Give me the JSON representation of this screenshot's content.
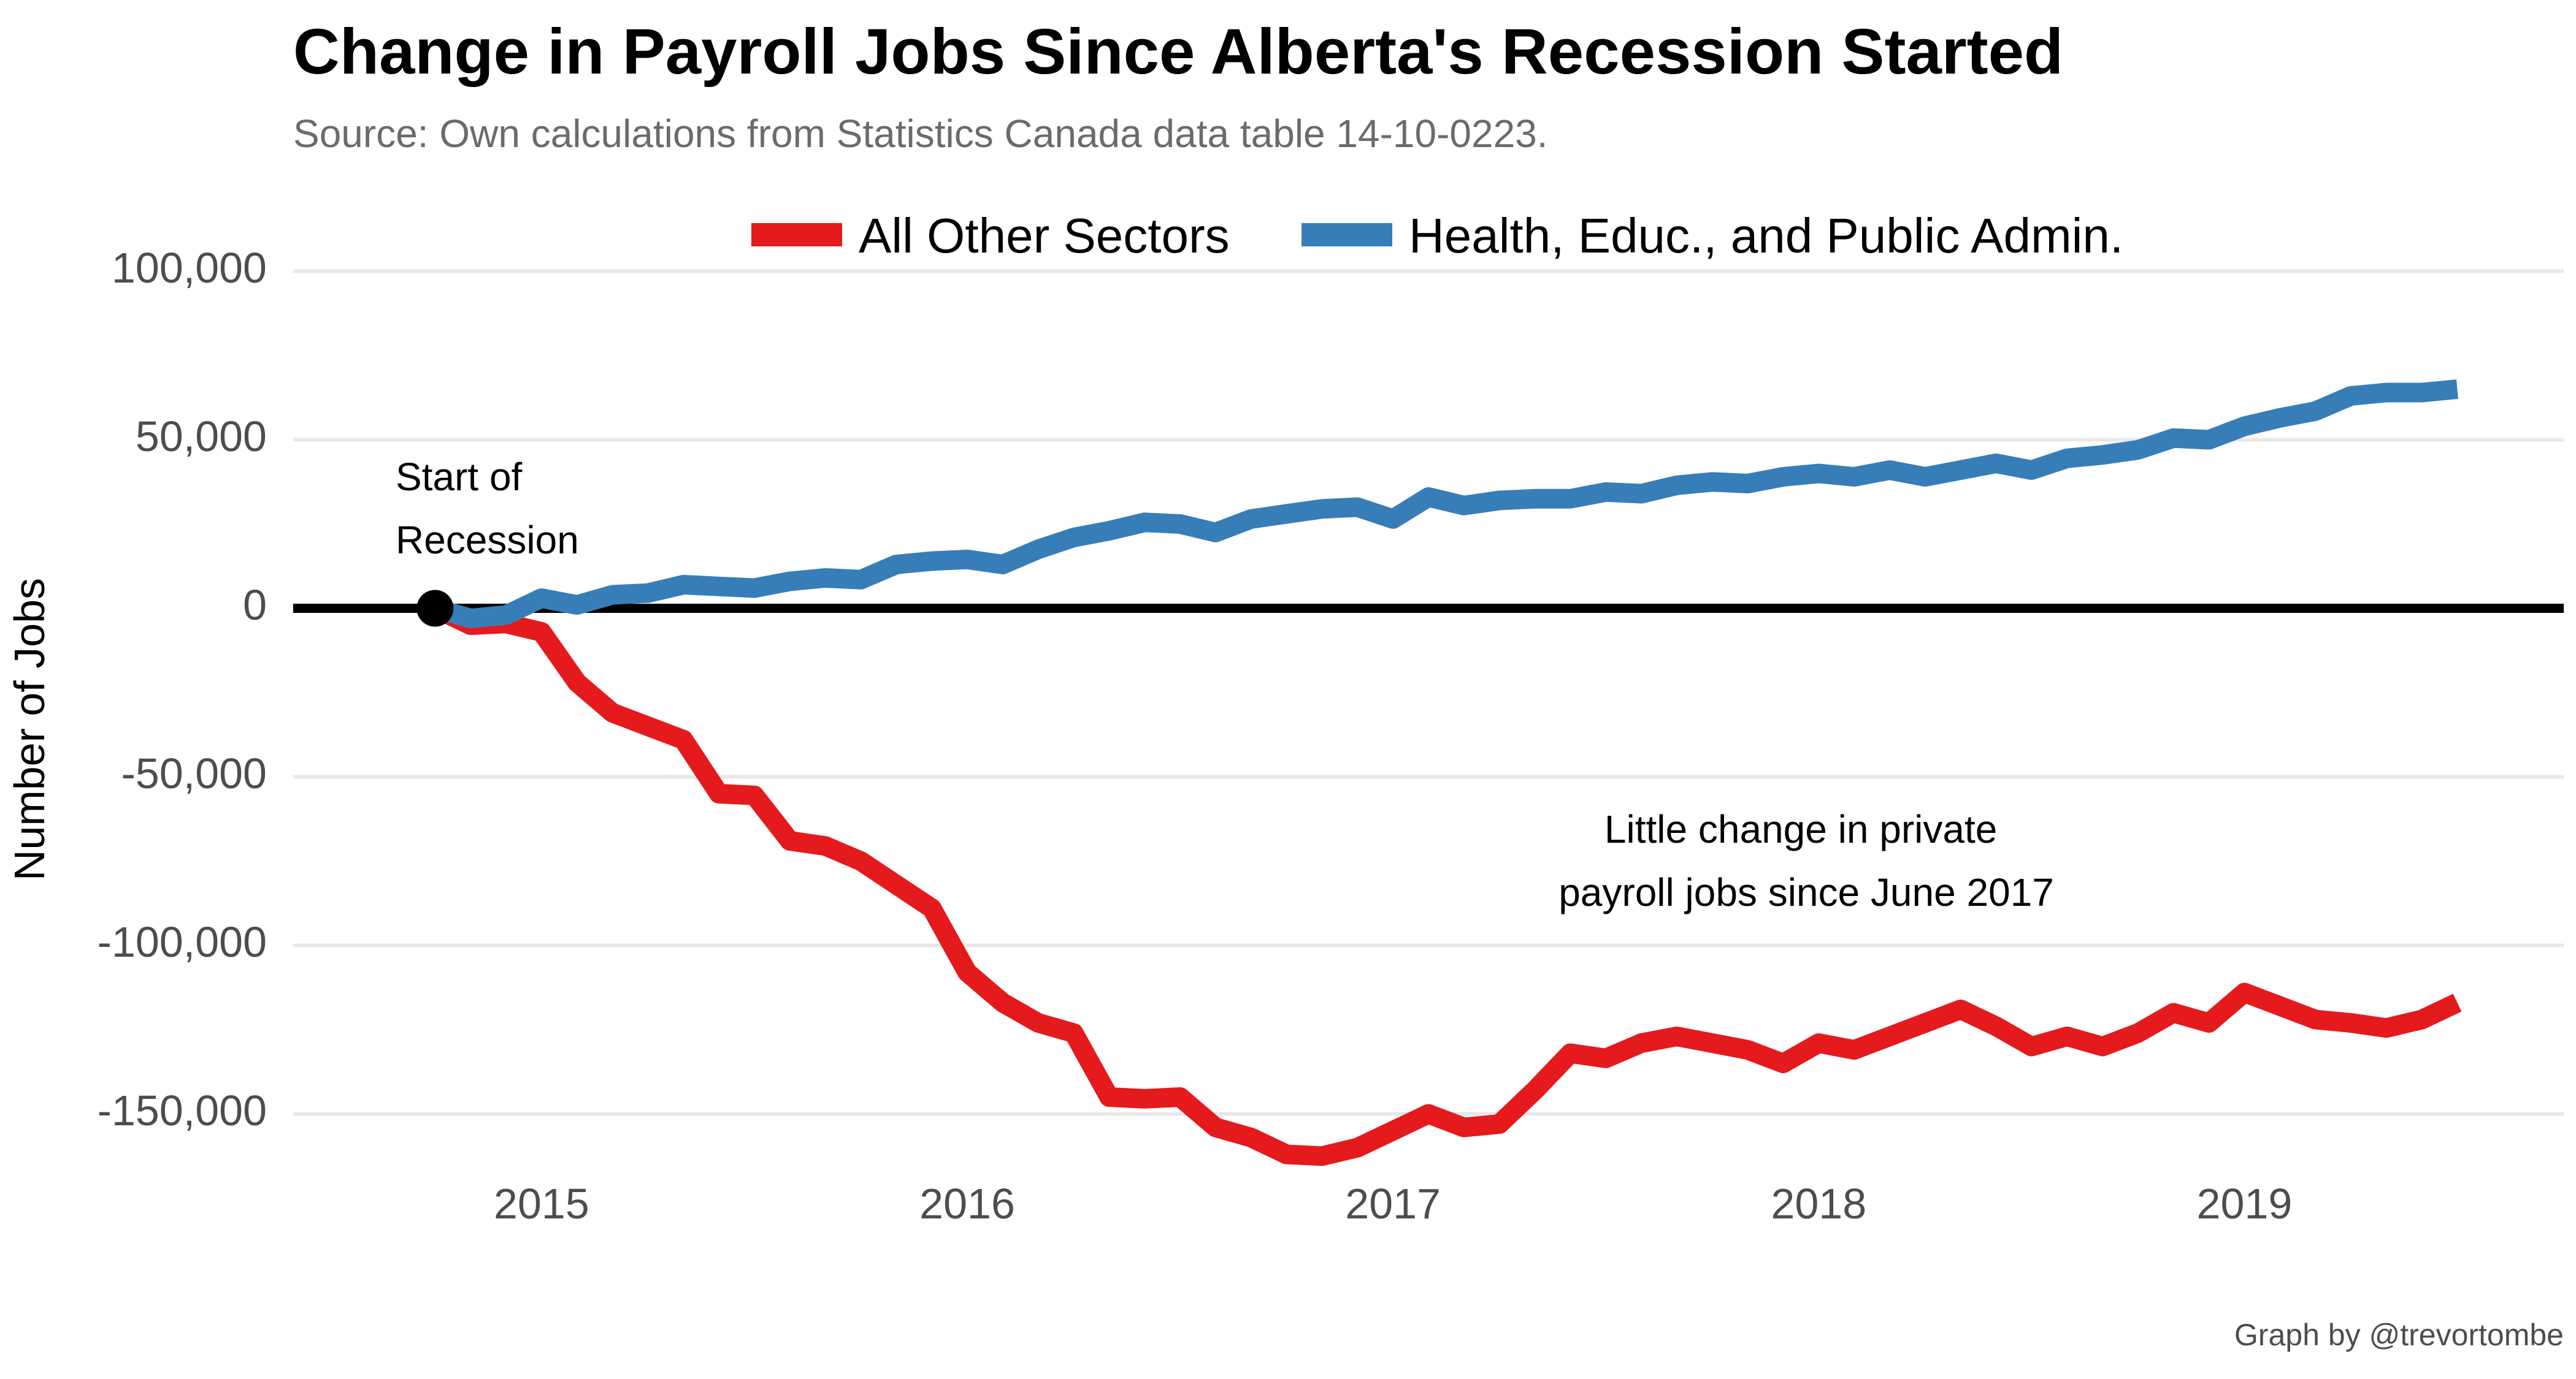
{
  "chart_data": {
    "type": "line",
    "title": "Change in Payroll Jobs Since Alberta's Recession Started",
    "subtitle": "Source: Own calculations from Statistics Canada data table 14-10-0223.",
    "ylabel": "Number of Jobs",
    "xlabel": "",
    "caption": "Graph by @trevortombe",
    "ylim": [
      -175000,
      105000
    ],
    "xlim": [
      "2014-06",
      "2019-10"
    ],
    "yticks": [
      {
        "value": 100000,
        "label": "100,000"
      },
      {
        "value": 50000,
        "label": "50,000"
      },
      {
        "value": 0,
        "label": "0"
      },
      {
        "value": -50000,
        "label": "-50,000"
      },
      {
        "value": -100000,
        "label": "-100,000"
      },
      {
        "value": -150000,
        "label": "-150,000"
      }
    ],
    "xticks": [
      {
        "value": "2015-01",
        "label": "2015"
      },
      {
        "value": "2016-01",
        "label": "2016"
      },
      {
        "value": "2017-01",
        "label": "2017"
      },
      {
        "value": "2018-01",
        "label": "2018"
      },
      {
        "value": "2019-01",
        "label": "2019"
      }
    ],
    "grid": true,
    "legend_position": "top",
    "x": [
      "2014-10",
      "2014-11",
      "2014-12",
      "2015-01",
      "2015-02",
      "2015-03",
      "2015-04",
      "2015-05",
      "2015-06",
      "2015-07",
      "2015-08",
      "2015-09",
      "2015-10",
      "2015-11",
      "2015-12",
      "2016-01",
      "2016-02",
      "2016-03",
      "2016-04",
      "2016-05",
      "2016-06",
      "2016-07",
      "2016-08",
      "2016-09",
      "2016-10",
      "2016-11",
      "2016-12",
      "2017-01",
      "2017-02",
      "2017-03",
      "2017-04",
      "2017-05",
      "2017-06",
      "2017-07",
      "2017-08",
      "2017-09",
      "2017-10",
      "2017-11",
      "2017-12",
      "2018-01",
      "2018-02",
      "2018-03",
      "2018-04",
      "2018-05",
      "2018-06",
      "2018-07",
      "2018-08",
      "2018-09",
      "2018-10",
      "2018-11",
      "2018-12",
      "2019-01",
      "2019-02",
      "2019-03",
      "2019-04",
      "2019-05",
      "2019-06",
      "2019-07"
    ],
    "series": [
      {
        "name": "All Other Sectors",
        "color": "#e41a1c",
        "values": [
          0,
          -5000,
          -4500,
          -7000,
          -22000,
          -31000,
          -35000,
          -39000,
          -55000,
          -55500,
          -69000,
          -70500,
          -75000,
          -82000,
          -89000,
          -108000,
          -117000,
          -123000,
          -126000,
          -145000,
          -145500,
          -145000,
          -154000,
          -157000,
          -162000,
          -162500,
          -160000,
          -155000,
          -150000,
          -154000,
          -153000,
          -143000,
          -132000,
          -133500,
          -129000,
          -127000,
          -129000,
          -131000,
          -135000,
          -129000,
          -131000,
          -127000,
          -123000,
          -119000,
          -124000,
          -130000,
          -127000,
          -130000,
          -126000,
          -120000,
          -123000,
          -114000,
          -118000,
          -122000,
          -123000,
          -124500,
          -122000,
          -117000
        ]
      },
      {
        "name": "Health, Educ., and Public Admin.",
        "color": "#377eb8",
        "values": [
          0,
          -3000,
          -2000,
          3000,
          1000,
          4000,
          4500,
          7000,
          6500,
          6000,
          8000,
          9000,
          8500,
          13000,
          14000,
          14500,
          13000,
          17500,
          21000,
          23000,
          25500,
          25000,
          22500,
          26500,
          28000,
          29500,
          30000,
          26500,
          33000,
          30500,
          32000,
          32500,
          32500,
          34500,
          34000,
          36500,
          37500,
          37000,
          39000,
          40000,
          39000,
          41000,
          39000,
          41000,
          43000,
          41000,
          44500,
          45500,
          47000,
          50500,
          50000,
          54000,
          56500,
          58500,
          63000,
          64000,
          64000,
          65000
        ]
      }
    ],
    "annotations": [
      {
        "lines": [
          "Start of",
          "Recession"
        ]
      },
      {
        "lines": [
          "Little change in private",
          "payroll jobs since June 2017"
        ]
      }
    ]
  }
}
